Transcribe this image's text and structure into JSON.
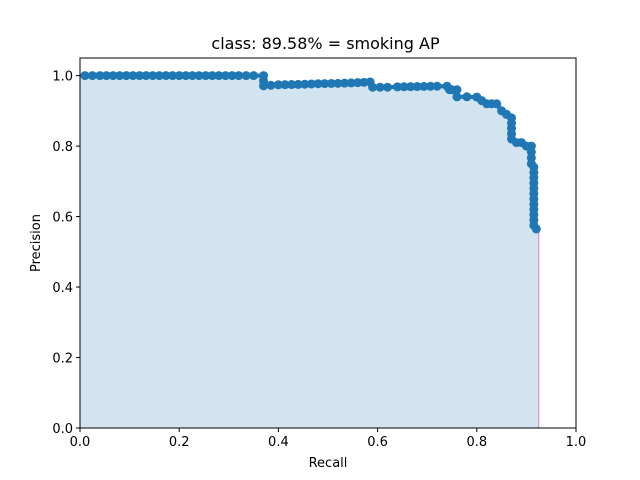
{
  "chart_data": {
    "type": "area",
    "title": "class: 89.58% = smoking AP",
    "xlabel": "Recall",
    "ylabel": "Precision",
    "xlim": [
      0,
      1
    ],
    "ylim": [
      0,
      1.05
    ],
    "xticks": [
      0.0,
      0.2,
      0.4,
      0.6,
      0.8,
      1.0
    ],
    "yticks": [
      0.0,
      0.2,
      0.4,
      0.6,
      0.8,
      1.0
    ],
    "xtick_labels": [
      "0.0",
      "0.2",
      "0.4",
      "0.6",
      "0.8",
      "1.0"
    ],
    "ytick_labels": [
      "0.0",
      "0.2",
      "0.4",
      "0.6",
      "0.8",
      "1.0"
    ],
    "grid": false,
    "series": [
      {
        "color": "#1f77b4",
        "marker": "circle",
        "x": [
          0.01,
          0.04,
          0.08,
          0.12,
          0.16,
          0.2,
          0.24,
          0.28,
          0.32,
          0.35,
          0.37,
          0.37,
          0.4,
          0.44,
          0.48,
          0.52,
          0.56,
          0.585,
          0.59,
          0.62,
          0.64,
          0.68,
          0.72,
          0.74,
          0.745,
          0.75,
          0.76,
          0.76,
          0.78,
          0.8,
          0.81,
          0.82,
          0.83,
          0.84,
          0.85,
          0.86,
          0.87,
          0.87,
          0.88,
          0.89,
          0.9,
          0.91,
          0.91,
          0.915,
          0.915,
          0.915,
          0.915,
          0.92
        ],
        "y": [
          1.0,
          1.0,
          1.0,
          1.0,
          1.0,
          1.0,
          1.0,
          1.0,
          1.0,
          1.0,
          1.0,
          0.971,
          0.974,
          0.975,
          0.977,
          0.978,
          0.98,
          0.982,
          0.967,
          0.967,
          0.968,
          0.969,
          0.97,
          0.97,
          0.96,
          0.96,
          0.96,
          0.94,
          0.94,
          0.939,
          0.929,
          0.92,
          0.92,
          0.92,
          0.9,
          0.89,
          0.88,
          0.82,
          0.81,
          0.81,
          0.8,
          0.8,
          0.75,
          0.74,
          0.68,
          0.62,
          0.575,
          0.565
        ]
      }
    ],
    "fill": {
      "color": "#1f77b4",
      "opacity": 0.2,
      "x": [
        0.0,
        0.01,
        0.37,
        0.37,
        0.58,
        0.59,
        0.72,
        0.75,
        0.76,
        0.8,
        0.81,
        0.85,
        0.86,
        0.87,
        0.91,
        0.915,
        0.92,
        0.925
      ],
      "y": [
        1.0,
        1.0,
        1.0,
        0.982,
        0.982,
        0.97,
        0.97,
        0.96,
        0.94,
        0.939,
        0.929,
        0.92,
        0.89,
        0.815,
        0.8,
        0.75,
        0.575,
        0.565
      ]
    },
    "edge_line_color": "#e377c2"
  }
}
